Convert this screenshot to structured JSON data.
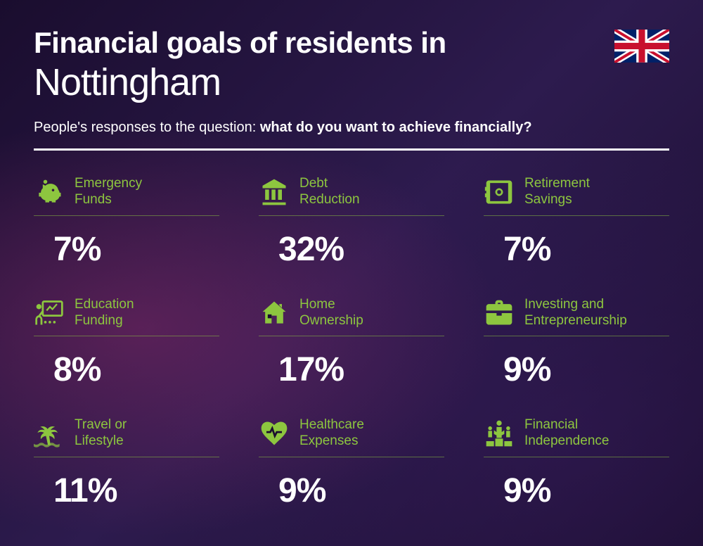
{
  "header": {
    "title_bold": "Financial goals of residents in",
    "title_light": "Nottingham",
    "subtitle_prefix": "People's responses to the question: ",
    "subtitle_bold": "what do you want to achieve financially?"
  },
  "styling": {
    "accent_color": "#8dc63f",
    "text_color": "#ffffff",
    "background_base": "#1a0d2e",
    "title_bold_fontsize": 42,
    "title_light_fontsize": 54,
    "subtitle_fontsize": 20,
    "label_fontsize": 19,
    "value_fontsize": 48,
    "divider_height": 3,
    "grid_columns": 3,
    "grid_row_gap": 40,
    "grid_col_gap": 56
  },
  "items": [
    {
      "label": "Emergency\nFunds",
      "value": "7%",
      "icon": "piggy-bank"
    },
    {
      "label": "Debt\nReduction",
      "value": "32%",
      "icon": "bank"
    },
    {
      "label": "Retirement\nSavings",
      "value": "7%",
      "icon": "safe"
    },
    {
      "label": "Education\nFunding",
      "value": "8%",
      "icon": "presentation"
    },
    {
      "label": "Home\nOwnership",
      "value": "17%",
      "icon": "house"
    },
    {
      "label": "Investing and\nEntrepreneurship",
      "value": "9%",
      "icon": "briefcase"
    },
    {
      "label": "Travel or\nLifestyle",
      "value": "11%",
      "icon": "palm-tree"
    },
    {
      "label": "Healthcare\nExpenses",
      "value": "9%",
      "icon": "heart-pulse"
    },
    {
      "label": "Financial\nIndependence",
      "value": "9%",
      "icon": "podium"
    }
  ]
}
